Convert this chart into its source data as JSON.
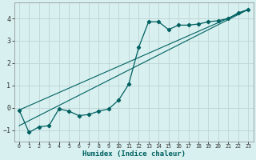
{
  "xlabel": "Humidex (Indice chaleur)",
  "bg_color": "#d8f0f0",
  "grid_color": "#c0d4d4",
  "line_color": "#006060",
  "xlim": [
    -0.5,
    23.5
  ],
  "ylim": [
    -1.5,
    4.7
  ],
  "yticks": [
    -1,
    0,
    1,
    2,
    3,
    4
  ],
  "xticks": [
    0,
    1,
    2,
    3,
    4,
    5,
    6,
    7,
    8,
    9,
    10,
    11,
    12,
    13,
    14,
    15,
    16,
    17,
    18,
    19,
    20,
    21,
    22,
    23
  ],
  "curve1_x": [
    0,
    1,
    2,
    3,
    4,
    5,
    6,
    7,
    8,
    9,
    10,
    11,
    12,
    13,
    14,
    15,
    16,
    17,
    18,
    19,
    20,
    21,
    22,
    23
  ],
  "curve1_y": [
    -0.1,
    -1.1,
    -0.85,
    -0.8,
    -0.05,
    -0.15,
    -0.35,
    -0.3,
    -0.15,
    -0.05,
    0.35,
    1.05,
    2.7,
    3.85,
    3.85,
    3.5,
    3.7,
    3.7,
    3.75,
    3.85,
    3.9,
    4.0,
    4.25,
    4.4
  ],
  "line1_x": [
    0,
    23
  ],
  "line1_y": [
    -0.1,
    4.4
  ],
  "line2_x": [
    0,
    23
  ],
  "line2_y": [
    -0.8,
    4.4
  ]
}
